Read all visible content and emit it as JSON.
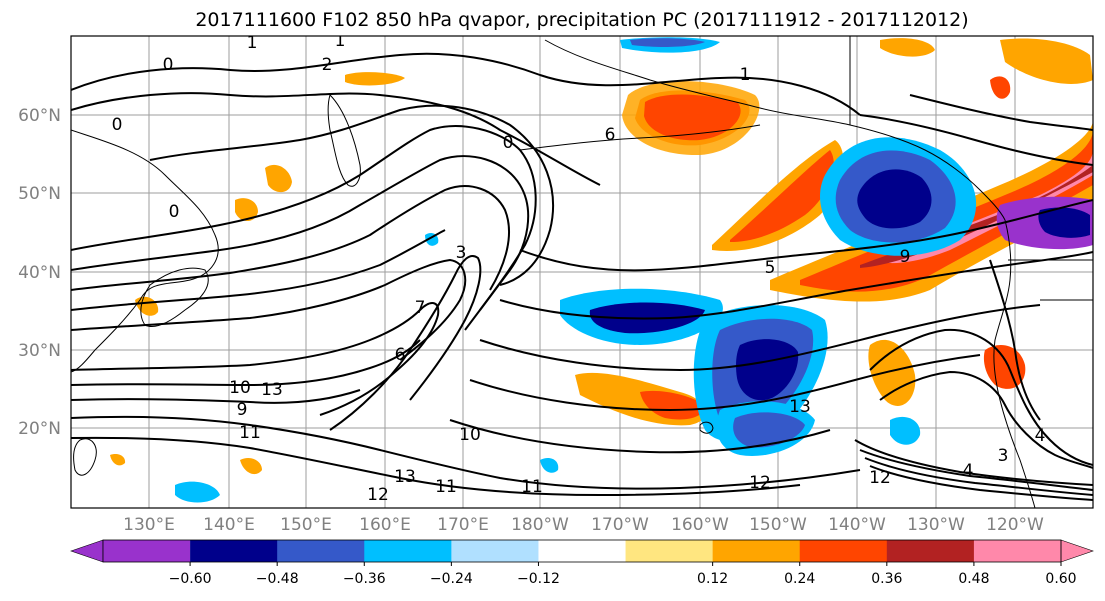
{
  "title": "2017111600 F102 850 hPa qvapor, precipitation PC (2017111912 - 2017112012)",
  "map": {
    "lat_labels": [
      "60°N",
      "50°N",
      "40°N",
      "30°N",
      "20°N"
    ],
    "lon_labels": [
      "130°E",
      "140°E",
      "150°E",
      "160°E",
      "170°E",
      "180°W",
      "170°W",
      "160°W",
      "150°W",
      "140°W",
      "130°W",
      "120°W"
    ],
    "gridlines": true,
    "contour_labels": [
      "1",
      "1",
      "0",
      "2",
      "0",
      "0",
      "1",
      "0",
      "3",
      "7",
      "6",
      "10",
      "9",
      "13",
      "11",
      "12",
      "13",
      "11",
      "11",
      "12",
      "12",
      "13",
      "10",
      "9",
      "5",
      "4",
      "3",
      "4",
      "6"
    ]
  },
  "colorbar": {
    "ticks": [
      "−0.60",
      "−0.48",
      "−0.36",
      "−0.24",
      "−0.12",
      "0.12",
      "0.24",
      "0.36",
      "0.48",
      "0.60"
    ],
    "colors": {
      "below_min": "#9932cc",
      "bins": [
        "#00008b",
        "#3559c9",
        "#00bfff",
        "#b0e0ff",
        "#ffffff",
        "#ffe680",
        "#ffa500",
        "#ff4500",
        "#b22222"
      ],
      "above_max": "#ff88aa"
    }
  }
}
